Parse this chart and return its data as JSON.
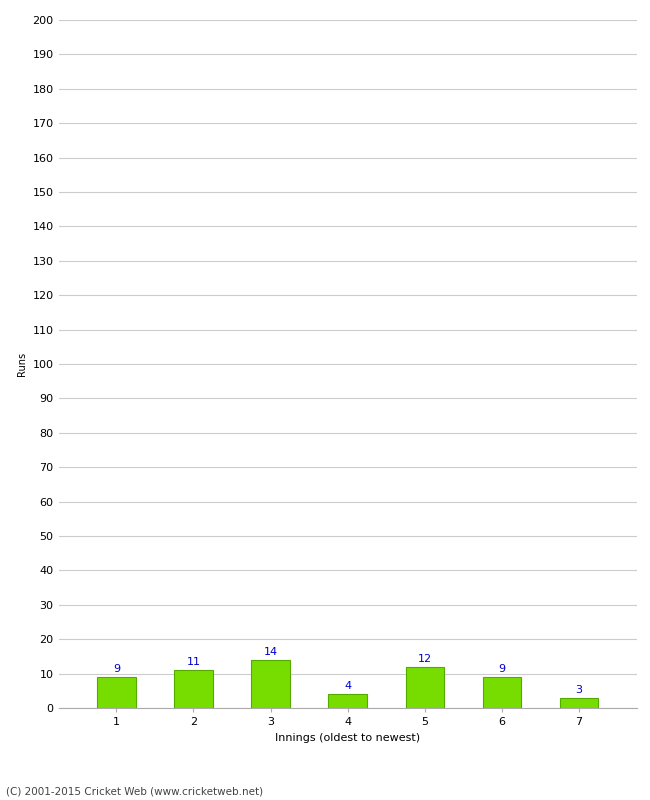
{
  "xlabel": "Innings (oldest to newest)",
  "ylabel": "Runs",
  "categories": [
    "1",
    "2",
    "3",
    "4",
    "5",
    "6",
    "7"
  ],
  "values": [
    9,
    11,
    14,
    4,
    12,
    9,
    3
  ],
  "bar_color": "#77dd00",
  "bar_edge_color": "#55aa00",
  "label_color": "#0000cc",
  "ylim": [
    0,
    200
  ],
  "yticks": [
    0,
    10,
    20,
    30,
    40,
    50,
    60,
    70,
    80,
    90,
    100,
    110,
    120,
    130,
    140,
    150,
    160,
    170,
    180,
    190,
    200
  ],
  "background_color": "#ffffff",
  "grid_color": "#cccccc",
  "footer": "(C) 2001-2015 Cricket Web (www.cricketweb.net)",
  "label_fontsize": 8,
  "axis_fontsize": 8,
  "ylabel_fontsize": 7,
  "xlabel_fontsize": 8,
  "footer_fontsize": 7.5
}
